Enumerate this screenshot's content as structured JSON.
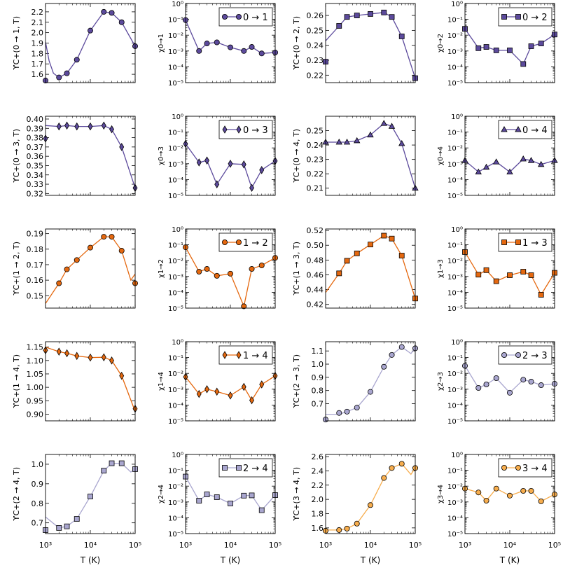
{
  "figure": {
    "x_axis_label": "T (K)",
    "x_ticks": [
      "10³",
      "10⁴",
      "10⁵"
    ],
    "log_ticks": [
      "10⁻⁵",
      "10⁻⁴",
      "10⁻³",
      "10⁻²",
      "10⁻¹",
      "10⁰"
    ]
  },
  "colors": {
    "purple": "#5c4a9c",
    "orange": "#e5680f",
    "lavender": "#a9a6cf",
    "gold": "#f7ad4d"
  },
  "chart_data": [
    {
      "type": "line",
      "panel": "upsilon",
      "transition": "0 → 1",
      "ylabel": "ϒC+(0 → 1, T)",
      "color": "purple",
      "marker": "circle",
      "x": [
        1000,
        2000,
        3000,
        5000,
        10000,
        20000,
        30000,
        50000,
        100000
      ],
      "y": [
        1.54,
        1.57,
        1.61,
        1.74,
        2.02,
        2.2,
        2.19,
        2.1,
        1.87
      ],
      "curve": [
        [
          1000,
          1.91
        ],
        [
          1200,
          1.73
        ],
        [
          1500,
          1.61
        ],
        [
          2000,
          1.57
        ],
        [
          3000,
          1.61
        ],
        [
          5000,
          1.74
        ],
        [
          10000,
          2.02
        ],
        [
          20000,
          2.2
        ],
        [
          30000,
          2.19
        ],
        [
          50000,
          2.1
        ],
        [
          100000,
          1.87
        ]
      ],
      "ylim": [
        1.52,
        2.28
      ],
      "yticks": [
        1.6,
        1.7,
        1.8,
        1.9,
        2.0,
        2.1,
        2.2
      ],
      "yticklabels": [
        "1.6",
        "1.7",
        "1.8",
        "1.9",
        "2.0",
        "2.1",
        "2.2"
      ]
    },
    {
      "type": "line",
      "panel": "chi",
      "transition": "0 → 1",
      "ylabel": "χ0→1",
      "color": "purple",
      "marker": "circle",
      "x": [
        1000,
        2000,
        3000,
        5000,
        10000,
        20000,
        30000,
        50000,
        100000
      ],
      "y": [
        0.09,
        0.001,
        0.003,
        0.0035,
        0.0017,
        0.001,
        0.0018,
        0.0007,
        0.0008
      ],
      "ylim": [
        1e-05,
        1
      ]
    },
    {
      "type": "line",
      "panel": "upsilon",
      "transition": "0 → 2",
      "ylabel": "ϒC+(0 → 2, T)",
      "color": "purple",
      "marker": "square",
      "x": [
        1000,
        2000,
        3000,
        5000,
        10000,
        20000,
        30000,
        50000,
        100000
      ],
      "y": [
        0.229,
        0.253,
        0.259,
        0.26,
        0.261,
        0.262,
        0.259,
        0.246,
        0.218
      ],
      "curve": [
        [
          1000,
          0.243
        ],
        [
          2000,
          0.253
        ],
        [
          3000,
          0.259
        ],
        [
          5000,
          0.26
        ],
        [
          10000,
          0.261
        ],
        [
          20000,
          0.262
        ],
        [
          30000,
          0.259
        ],
        [
          50000,
          0.246
        ],
        [
          100000,
          0.218
        ]
      ],
      "ylim": [
        0.215,
        0.268
      ],
      "yticks": [
        0.22,
        0.23,
        0.24,
        0.25,
        0.26
      ],
      "yticklabels": [
        "0.22",
        "0.23",
        "0.24",
        "0.25",
        "0.26"
      ]
    },
    {
      "type": "line",
      "panel": "chi",
      "transition": "0 → 2",
      "ylabel": "χ0→2",
      "color": "purple",
      "marker": "square",
      "x": [
        1000,
        2000,
        3000,
        5000,
        10000,
        20000,
        30000,
        50000,
        100000
      ],
      "y": [
        0.025,
        0.0015,
        0.0018,
        0.0011,
        0.0011,
        0.00015,
        0.002,
        0.003,
        0.011
      ],
      "ylim": [
        1e-05,
        1
      ]
    },
    {
      "type": "line",
      "panel": "upsilon",
      "transition": "0 → 3",
      "ylabel": "ϒC+(0 → 3, T)",
      "color": "purple",
      "marker": "diamond",
      "x": [
        1000,
        2000,
        3000,
        5000,
        10000,
        20000,
        30000,
        50000,
        100000
      ],
      "y": [
        0.379,
        0.392,
        0.393,
        0.392,
        0.392,
        0.393,
        0.389,
        0.37,
        0.326
      ],
      "curve": [
        [
          1000,
          0.393
        ],
        [
          2000,
          0.392
        ],
        [
          3000,
          0.393
        ],
        [
          5000,
          0.392
        ],
        [
          10000,
          0.392
        ],
        [
          20000,
          0.393
        ],
        [
          30000,
          0.389
        ],
        [
          50000,
          0.37
        ],
        [
          100000,
          0.326
        ]
      ],
      "ylim": [
        0.318,
        0.403
      ],
      "yticks": [
        0.32,
        0.33,
        0.34,
        0.35,
        0.36,
        0.37,
        0.38,
        0.39,
        0.4
      ],
      "yticklabels": [
        "0.32",
        "0.33",
        "0.34",
        "0.35",
        "0.36",
        "0.37",
        "0.38",
        "0.39",
        "0.40"
      ]
    },
    {
      "type": "line",
      "panel": "chi",
      "transition": "0 → 3",
      "ylabel": "χ0→3",
      "color": "purple",
      "marker": "diamond",
      "x": [
        1000,
        2000,
        3000,
        5000,
        10000,
        20000,
        30000,
        50000,
        100000
      ],
      "y": [
        0.018,
        0.0012,
        0.0016,
        5e-05,
        0.001,
        0.0009,
        3e-05,
        0.0004,
        0.0015
      ],
      "ylim": [
        1e-05,
        1
      ]
    },
    {
      "type": "line",
      "panel": "upsilon",
      "transition": "0 → 4",
      "ylabel": "ϒC+(0 → 4, T)",
      "color": "purple",
      "marker": "triangle",
      "x": [
        1000,
        2000,
        3000,
        5000,
        10000,
        20000,
        30000,
        50000,
        100000
      ],
      "y": [
        0.242,
        0.242,
        0.242,
        0.243,
        0.247,
        0.255,
        0.253,
        0.241,
        0.21
      ],
      "curve": [
        [
          1000,
          0.242
        ],
        [
          2000,
          0.242
        ],
        [
          3000,
          0.242
        ],
        [
          5000,
          0.243
        ],
        [
          10000,
          0.247
        ],
        [
          20000,
          0.255
        ],
        [
          30000,
          0.253
        ],
        [
          50000,
          0.241
        ],
        [
          100000,
          0.21
        ]
      ],
      "ylim": [
        0.205,
        0.26
      ],
      "yticks": [
        0.21,
        0.22,
        0.23,
        0.24,
        0.25
      ],
      "yticklabels": [
        "0.21",
        "0.22",
        "0.23",
        "0.24",
        "0.25"
      ]
    },
    {
      "type": "line",
      "panel": "chi",
      "transition": "0 → 4",
      "ylabel": "χ0→4",
      "color": "purple",
      "marker": "triangle",
      "x": [
        1000,
        2000,
        3000,
        5000,
        10000,
        20000,
        30000,
        50000,
        100000
      ],
      "y": [
        0.0016,
        0.0003,
        0.0006,
        0.0013,
        0.0003,
        0.002,
        0.0016,
        0.0009,
        0.0016
      ],
      "ylim": [
        1e-05,
        1
      ]
    },
    {
      "type": "line",
      "panel": "upsilon",
      "transition": "1 → 2",
      "ylabel": "ϒC+(1 → 2, T)",
      "color": "orange",
      "marker": "circle",
      "x": [
        2000,
        3000,
        5000,
        10000,
        20000,
        30000,
        50000,
        100000
      ],
      "y": [
        0.158,
        0.167,
        0.173,
        0.181,
        0.188,
        0.188,
        0.179,
        0.158
      ],
      "curve": [
        [
          1000,
          0.145
        ],
        [
          2000,
          0.158
        ],
        [
          3000,
          0.167
        ],
        [
          5000,
          0.173
        ],
        [
          10000,
          0.181
        ],
        [
          20000,
          0.188
        ],
        [
          30000,
          0.188
        ],
        [
          50000,
          0.179
        ],
        [
          80000,
          0.16
        ],
        [
          100000,
          0.164
        ]
      ],
      "ylim": [
        0.142,
        0.193
      ],
      "yticks": [
        0.15,
        0.16,
        0.17,
        0.18,
        0.19
      ],
      "yticklabels": [
        "0.15",
        "0.16",
        "0.17",
        "0.18",
        "0.19"
      ]
    },
    {
      "type": "line",
      "panel": "chi",
      "transition": "1 → 2",
      "ylabel": "χ1→2",
      "color": "orange",
      "marker": "circle",
      "x": [
        1000,
        2000,
        3000,
        5000,
        10000,
        20000,
        30000,
        50000,
        100000
      ],
      "y": [
        0.07,
        0.002,
        0.003,
        0.0011,
        0.0015,
        1.3e-05,
        0.003,
        0.005,
        0.015
      ],
      "ylim": [
        1e-05,
        1
      ]
    },
    {
      "type": "line",
      "panel": "upsilon",
      "transition": "1 → 3",
      "ylabel": "ϒC+(1 → 3, T)",
      "color": "orange",
      "marker": "square",
      "x": [
        2000,
        3000,
        5000,
        10000,
        20000,
        30000,
        50000,
        100000
      ],
      "y": [
        0.462,
        0.479,
        0.489,
        0.501,
        0.513,
        0.509,
        0.486,
        0.428
      ],
      "curve": [
        [
          1000,
          0.436
        ],
        [
          2000,
          0.462
        ],
        [
          3000,
          0.479
        ],
        [
          5000,
          0.489
        ],
        [
          10000,
          0.501
        ],
        [
          20000,
          0.513
        ],
        [
          30000,
          0.509
        ],
        [
          50000,
          0.486
        ],
        [
          100000,
          0.428
        ]
      ],
      "ylim": [
        0.415,
        0.522
      ],
      "yticks": [
        0.42,
        0.44,
        0.46,
        0.48,
        0.5,
        0.52
      ],
      "yticklabels": [
        "0.42",
        "0.44",
        "0.46",
        "0.48",
        "0.50",
        "0.52"
      ]
    },
    {
      "type": "line",
      "panel": "chi",
      "transition": "1 → 3",
      "ylabel": "χ1→3",
      "color": "orange",
      "marker": "square",
      "x": [
        1000,
        2000,
        3000,
        5000,
        10000,
        20000,
        30000,
        50000,
        100000
      ],
      "y": [
        0.035,
        0.0013,
        0.0025,
        0.0005,
        0.0012,
        0.002,
        0.0012,
        7e-05,
        0.0017
      ],
      "ylim": [
        1e-05,
        1
      ]
    },
    {
      "type": "line",
      "panel": "upsilon",
      "transition": "1 → 4",
      "ylabel": "ϒC+(1 → 4, T)",
      "color": "orange",
      "marker": "diamond",
      "x": [
        1000,
        2000,
        3000,
        5000,
        10000,
        20000,
        30000,
        50000,
        100000
      ],
      "y": [
        1.138,
        1.133,
        1.127,
        1.117,
        1.111,
        1.112,
        1.1,
        1.043,
        0.92
      ],
      "curve": [
        [
          1000,
          1.15
        ],
        [
          2000,
          1.133
        ],
        [
          3000,
          1.127
        ],
        [
          5000,
          1.117
        ],
        [
          10000,
          1.111
        ],
        [
          20000,
          1.112
        ],
        [
          30000,
          1.1
        ],
        [
          50000,
          1.043
        ],
        [
          100000,
          0.91
        ]
      ],
      "ylim": [
        0.875,
        1.17
      ],
      "yticks": [
        0.9,
        0.95,
        1.0,
        1.05,
        1.1,
        1.15
      ],
      "yticklabels": [
        "0.90",
        "0.95",
        "1.00",
        "1.05",
        "1.10",
        "1.15"
      ]
    },
    {
      "type": "line",
      "panel": "chi",
      "transition": "1 → 4",
      "ylabel": "χ1→4",
      "color": "orange",
      "marker": "diamond",
      "x": [
        1000,
        2000,
        3000,
        5000,
        10000,
        20000,
        30000,
        50000,
        100000
      ],
      "y": [
        0.006,
        0.0005,
        0.001,
        0.0007,
        0.0004,
        0.0014,
        0.0002,
        0.002,
        0.007
      ],
      "ylim": [
        1e-05,
        1
      ]
    },
    {
      "type": "line",
      "panel": "upsilon",
      "transition": "2 → 3",
      "ylabel": "ϒC+(2 → 3, T)",
      "color": "lavender",
      "marker": "circle",
      "x": [
        1000,
        2000,
        3000,
        5000,
        10000,
        20000,
        30000,
        50000,
        100000
      ],
      "y": [
        0.58,
        0.63,
        0.64,
        0.67,
        0.79,
        0.98,
        1.07,
        1.13,
        1.12
      ],
      "curve": [
        [
          1000,
          0.62
        ],
        [
          2000,
          0.62
        ],
        [
          3000,
          0.64
        ],
        [
          5000,
          0.67
        ],
        [
          10000,
          0.79
        ],
        [
          20000,
          0.98
        ],
        [
          30000,
          1.07
        ],
        [
          50000,
          1.13
        ],
        [
          80000,
          1.08
        ],
        [
          100000,
          1.12
        ]
      ],
      "ylim": [
        0.57,
        1.17
      ],
      "yticks": [
        0.7,
        0.8,
        0.9,
        1.0,
        1.1
      ],
      "yticklabels": [
        "0.7",
        "0.8",
        "0.9",
        "1.0",
        "1.1"
      ]
    },
    {
      "type": "line",
      "panel": "chi",
      "transition": "2 → 3",
      "ylabel": "χ2→3",
      "color": "lavender",
      "marker": "circle",
      "x": [
        1000,
        2000,
        3000,
        5000,
        10000,
        20000,
        30000,
        50000,
        100000
      ],
      "y": [
        0.03,
        0.0012,
        0.002,
        0.005,
        0.0006,
        0.004,
        0.003,
        0.0018,
        0.0022
      ],
      "ylim": [
        1e-05,
        1
      ]
    },
    {
      "type": "line",
      "panel": "upsilon",
      "transition": "2 → 4",
      "ylabel": "ϒC+(2 → 4, T)",
      "color": "lavender",
      "marker": "square",
      "x": [
        1000,
        2000,
        3000,
        5000,
        10000,
        20000,
        30000,
        50000,
        100000
      ],
      "y": [
        0.663,
        0.674,
        0.682,
        0.72,
        0.835,
        0.967,
        1.005,
        1.005,
        0.975
      ],
      "curve": [
        [
          1000,
          0.73
        ],
        [
          2000,
          0.674
        ],
        [
          3000,
          0.682
        ],
        [
          5000,
          0.72
        ],
        [
          10000,
          0.835
        ],
        [
          20000,
          0.967
        ],
        [
          30000,
          1.005
        ],
        [
          50000,
          1.005
        ],
        [
          80000,
          0.96
        ],
        [
          100000,
          0.975
        ]
      ],
      "ylim": [
        0.645,
        1.05
      ],
      "yticks": [
        0.7,
        0.8,
        0.9,
        1.0
      ],
      "yticklabels": [
        "0.7",
        "0.8",
        "0.9",
        "1.0"
      ]
    },
    {
      "type": "line",
      "panel": "chi",
      "transition": "2 → 4",
      "ylabel": "χ2→4",
      "color": "lavender",
      "marker": "square",
      "x": [
        1000,
        2000,
        3000,
        5000,
        10000,
        20000,
        30000,
        50000,
        100000
      ],
      "y": [
        0.04,
        0.0012,
        0.003,
        0.002,
        0.0008,
        0.0025,
        0.0026,
        0.0003,
        0.0027
      ],
      "ylim": [
        1e-05,
        1
      ]
    },
    {
      "type": "line",
      "panel": "upsilon",
      "transition": "3 → 4",
      "ylabel": "ϒC+(3 → 4, T)",
      "color": "gold",
      "marker": "circle",
      "x": [
        1000,
        2000,
        3000,
        5000,
        10000,
        20000,
        30000,
        50000,
        100000
      ],
      "y": [
        1.56,
        1.57,
        1.59,
        1.66,
        1.92,
        2.3,
        2.44,
        2.5,
        2.44
      ],
      "curve": [
        [
          1000,
          1.57
        ],
        [
          2000,
          1.57
        ],
        [
          3000,
          1.59
        ],
        [
          5000,
          1.66
        ],
        [
          10000,
          1.92
        ],
        [
          20000,
          2.3
        ],
        [
          30000,
          2.44
        ],
        [
          50000,
          2.5
        ],
        [
          80000,
          2.35
        ],
        [
          100000,
          2.44
        ]
      ],
      "ylim": [
        1.52,
        2.63
      ],
      "yticks": [
        1.6,
        1.8,
        2.0,
        2.2,
        2.4,
        2.6
      ],
      "yticklabels": [
        "1.6",
        "1.8",
        "2.0",
        "2.2",
        "2.4",
        "2.6"
      ]
    },
    {
      "type": "line",
      "panel": "chi",
      "transition": "3 → 4",
      "ylabel": "χ3→4",
      "color": "gold",
      "marker": "circle",
      "x": [
        1000,
        2000,
        3000,
        5000,
        10000,
        20000,
        30000,
        50000,
        100000
      ],
      "y": [
        0.007,
        0.004,
        0.0012,
        0.007,
        0.0025,
        0.005,
        0.005,
        0.0011,
        0.003
      ],
      "ylim": [
        1e-05,
        1
      ]
    }
  ]
}
